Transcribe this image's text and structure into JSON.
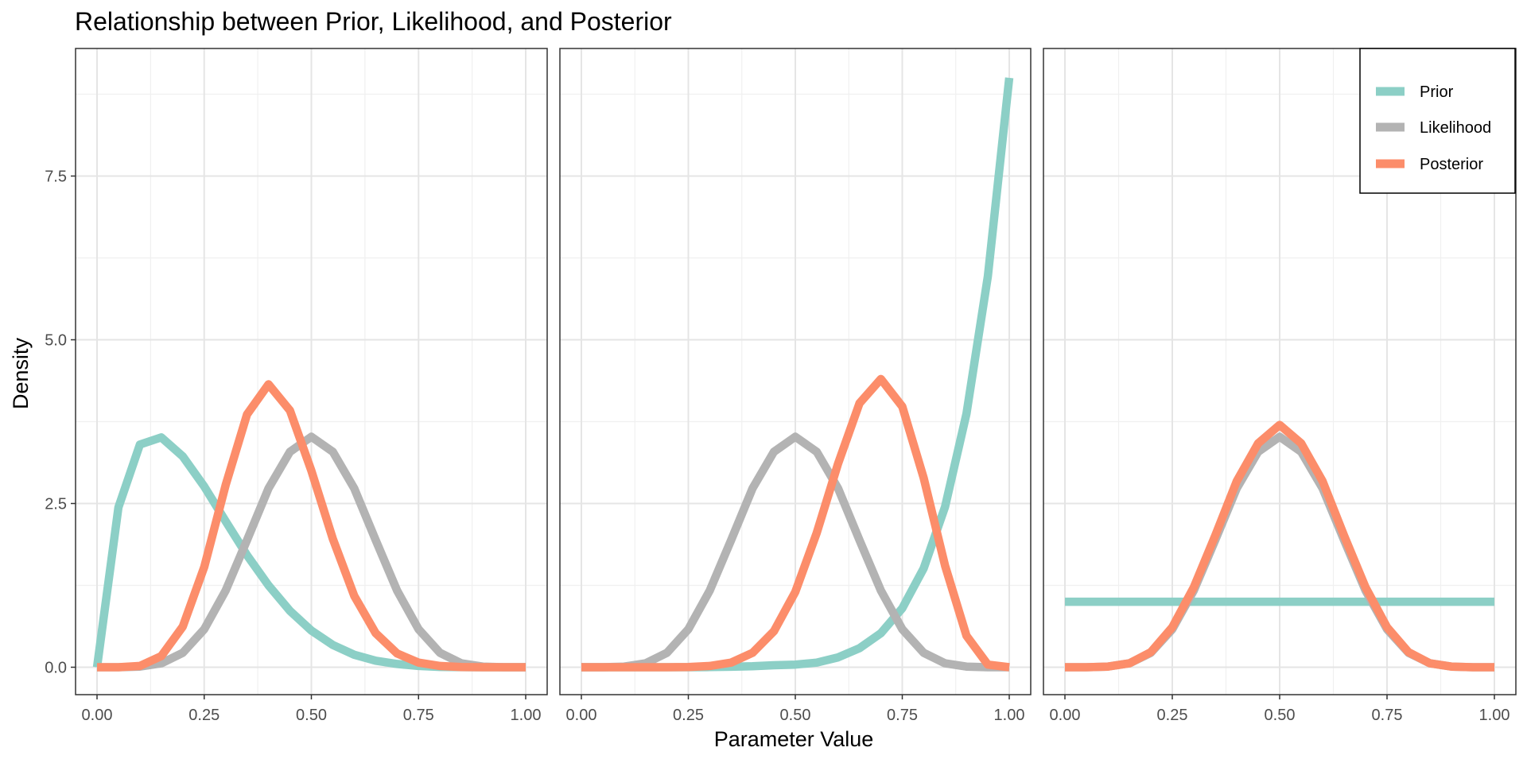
{
  "chart_data": {
    "type": "line",
    "title": "Relationship between Prior, Likelihood, and Posterior",
    "xlabel": "Parameter Value",
    "ylabel": "Density",
    "xlim": [
      0,
      1
    ],
    "ylim": [
      0,
      9
    ],
    "x_ticks": [
      "0.00",
      "0.25",
      "0.50",
      "0.75",
      "1.00"
    ],
    "y_ticks": [
      "0.0",
      "2.5",
      "5.0",
      "7.5"
    ],
    "x_tick_values": [
      0,
      0.25,
      0.5,
      0.75,
      1
    ],
    "y_tick_values": [
      0,
      2.5,
      5,
      7.5
    ],
    "grid": true,
    "legend_position": "top-right",
    "series_colors": {
      "Prior": "#8ccfc6",
      "Likelihood": "#b3b3b3",
      "Posterior": "#fc8d6a"
    },
    "legend": [
      "Prior",
      "Likelihood",
      "Posterior"
    ],
    "x": [
      0,
      0.05,
      0.1,
      0.15,
      0.2,
      0.25,
      0.3,
      0.35,
      0.4,
      0.45,
      0.5,
      0.55,
      0.6,
      0.65,
      0.7,
      0.75,
      0.8,
      0.85,
      0.9,
      0.95,
      1
    ],
    "panels": [
      {
        "series": [
          {
            "name": "Prior",
            "values": [
              0,
              2.44,
              3.4,
              3.51,
              3.22,
              2.76,
              2.23,
              1.71,
              1.25,
              0.86,
              0.56,
              0.34,
              0.19,
              0.1,
              0.05,
              0.02,
              0.005,
              0.001,
              0,
              0,
              0
            ]
          },
          {
            "name": "Likelihood",
            "values": [
              0,
              0.0004,
              0.01,
              0.06,
              0.22,
              0.58,
              1.17,
              1.94,
              2.73,
              3.29,
              3.52,
              3.29,
              2.73,
              1.94,
              1.17,
              0.58,
              0.22,
              0.06,
              0.01,
              0.0004,
              0
            ]
          },
          {
            "name": "Posterior",
            "values": [
              0,
              0.0004,
              0.02,
              0.17,
              0.62,
              1.53,
              2.78,
              3.86,
              4.32,
              3.92,
              3.0,
              1.96,
              1.09,
              0.52,
              0.21,
              0.07,
              0.02,
              0.003,
              0,
              0,
              0
            ]
          }
        ]
      },
      {
        "series": [
          {
            "name": "Prior",
            "values": [
              0,
              0,
              0,
              0,
              0.0002,
              0.0006,
              0.002,
              0.007,
              0.015,
              0.03,
              0.04,
              0.07,
              0.15,
              0.29,
              0.52,
              0.9,
              1.51,
              2.45,
              3.87,
              5.97,
              9.0
            ]
          },
          {
            "name": "Likelihood",
            "values": [
              0,
              0.0004,
              0.01,
              0.06,
              0.22,
              0.58,
              1.17,
              1.94,
              2.73,
              3.29,
              3.52,
              3.29,
              2.73,
              1.94,
              1.17,
              0.58,
              0.22,
              0.06,
              0.01,
              0.0004,
              0
            ]
          },
          {
            "name": "Posterior",
            "values": [
              0,
              0,
              0,
              0,
              0.0003,
              0.003,
              0.02,
              0.07,
              0.22,
              0.55,
              1.15,
              2.05,
              3.11,
              4.03,
              4.4,
              3.98,
              2.89,
              1.55,
              0.48,
              0.04,
              0
            ]
          }
        ]
      },
      {
        "series": [
          {
            "name": "Prior",
            "values": [
              1,
              1,
              1,
              1,
              1,
              1,
              1,
              1,
              1,
              1,
              1,
              1,
              1,
              1,
              1,
              1,
              1,
              1,
              1,
              1,
              1
            ]
          },
          {
            "name": "Likelihood",
            "values": [
              0,
              0.0004,
              0.01,
              0.06,
              0.22,
              0.58,
              1.17,
              1.94,
              2.73,
              3.29,
              3.52,
              3.29,
              2.73,
              1.94,
              1.17,
              0.58,
              0.22,
              0.06,
              0.01,
              0.0004,
              0
            ]
          },
          {
            "name": "Posterior",
            "values": [
              0,
              0.0005,
              0.01,
              0.06,
              0.23,
              0.61,
              1.22,
              2.01,
              2.84,
              3.42,
              3.7,
              3.42,
              2.84,
              2.01,
              1.22,
              0.61,
              0.23,
              0.06,
              0.01,
              0.0005,
              0
            ]
          }
        ]
      }
    ]
  }
}
